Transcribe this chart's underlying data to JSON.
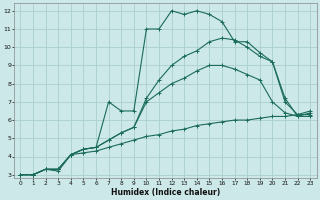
{
  "xlabel": "Humidex (Indice chaleur)",
  "background_color": "#cce8e8",
  "grid_color": "#aad0d0",
  "line_color": "#1a6b5a",
  "xlim": [
    -0.5,
    23.5
  ],
  "ylim": [
    2.8,
    12.4
  ],
  "xticks": [
    0,
    1,
    2,
    3,
    4,
    5,
    6,
    7,
    8,
    9,
    10,
    11,
    12,
    13,
    14,
    15,
    16,
    17,
    18,
    19,
    20,
    21,
    22,
    23
  ],
  "yticks": [
    3,
    4,
    5,
    6,
    7,
    8,
    9,
    10,
    11,
    12
  ],
  "series_bottom": [
    [
      0,
      3
    ],
    [
      1,
      3
    ],
    [
      2,
      3.3
    ],
    [
      3,
      3.3
    ],
    [
      4,
      4.1
    ],
    [
      5,
      4.2
    ],
    [
      6,
      4.3
    ],
    [
      7,
      4.5
    ],
    [
      8,
      4.7
    ],
    [
      9,
      4.9
    ],
    [
      10,
      5.1
    ],
    [
      11,
      5.2
    ],
    [
      12,
      5.4
    ],
    [
      13,
      5.5
    ],
    [
      14,
      5.7
    ],
    [
      15,
      5.8
    ],
    [
      16,
      5.9
    ],
    [
      17,
      6.0
    ],
    [
      18,
      6.0
    ],
    [
      19,
      6.1
    ],
    [
      20,
      6.2
    ],
    [
      21,
      6.2
    ],
    [
      22,
      6.3
    ],
    [
      23,
      6.3
    ]
  ],
  "series_mid1": [
    [
      0,
      3
    ],
    [
      1,
      3
    ],
    [
      2,
      3.3
    ],
    [
      3,
      3.3
    ],
    [
      4,
      4.1
    ],
    [
      5,
      4.4
    ],
    [
      6,
      4.5
    ],
    [
      7,
      4.9
    ],
    [
      8,
      5.3
    ],
    [
      9,
      5.6
    ],
    [
      10,
      7.0
    ],
    [
      11,
      7.5
    ],
    [
      12,
      8.0
    ],
    [
      13,
      8.3
    ],
    [
      14,
      8.7
    ],
    [
      15,
      9.0
    ],
    [
      16,
      9.0
    ],
    [
      17,
      8.8
    ],
    [
      18,
      8.5
    ],
    [
      19,
      8.2
    ],
    [
      20,
      7.0
    ],
    [
      21,
      6.4
    ],
    [
      22,
      6.2
    ],
    [
      23,
      6.2
    ]
  ],
  "series_mid2": [
    [
      0,
      3
    ],
    [
      1,
      3
    ],
    [
      2,
      3.3
    ],
    [
      3,
      3.3
    ],
    [
      4,
      4.1
    ],
    [
      5,
      4.4
    ],
    [
      6,
      4.5
    ],
    [
      7,
      4.9
    ],
    [
      8,
      5.3
    ],
    [
      9,
      5.6
    ],
    [
      10,
      7.2
    ],
    [
      11,
      8.2
    ],
    [
      12,
      9.0
    ],
    [
      13,
      9.5
    ],
    [
      14,
      9.8
    ],
    [
      15,
      10.3
    ],
    [
      16,
      10.5
    ],
    [
      17,
      10.4
    ],
    [
      18,
      10.0
    ],
    [
      19,
      9.5
    ],
    [
      20,
      9.2
    ],
    [
      21,
      7.2
    ],
    [
      22,
      6.2
    ],
    [
      23,
      6.4
    ]
  ],
  "series_top": [
    [
      0,
      3
    ],
    [
      1,
      3
    ],
    [
      2,
      3.3
    ],
    [
      3,
      3.2
    ],
    [
      4,
      4.1
    ],
    [
      5,
      4.4
    ],
    [
      6,
      4.5
    ],
    [
      7,
      7.0
    ],
    [
      8,
      6.5
    ],
    [
      9,
      6.5
    ],
    [
      10,
      11.0
    ],
    [
      11,
      11.0
    ],
    [
      12,
      12.0
    ],
    [
      13,
      11.8
    ],
    [
      14,
      12.0
    ],
    [
      15,
      11.8
    ],
    [
      16,
      11.4
    ],
    [
      17,
      10.3
    ],
    [
      18,
      10.3
    ],
    [
      19,
      9.7
    ],
    [
      20,
      9.2
    ],
    [
      21,
      7.0
    ],
    [
      22,
      6.3
    ],
    [
      23,
      6.5
    ]
  ]
}
